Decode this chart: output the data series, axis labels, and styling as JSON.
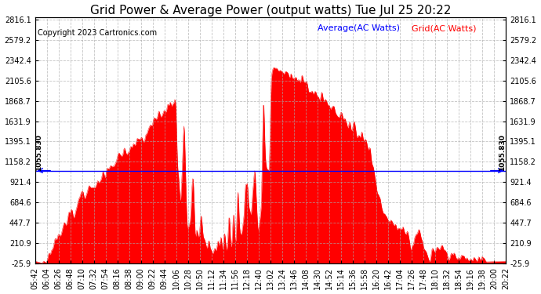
{
  "title": "Grid Power & Average Power (output watts) Tue Jul 25 20:22",
  "copyright": "Copyright 2023 Cartronics.com",
  "legend_average": "Average(AC Watts)",
  "legend_grid": "Grid(AC Watts)",
  "average_value": 1055.83,
  "average_label": "1055.830",
  "y_min": -25.9,
  "y_max": 2816.1,
  "yticks": [
    2816.1,
    2579.2,
    2342.4,
    2105.6,
    1868.7,
    1631.9,
    1395.1,
    1158.2,
    921.4,
    684.6,
    447.7,
    210.9,
    -25.9
  ],
  "fill_color": "#ff0000",
  "line_color": "#ff0000",
  "average_line_color": "#0000ff",
  "background_color": "#ffffff",
  "grid_color": "#aaaaaa",
  "title_fontsize": 11,
  "copyright_fontsize": 7,
  "legend_fontsize": 8,
  "tick_fontsize": 7,
  "xtick_labels": [
    "05:42",
    "06:04",
    "06:26",
    "06:48",
    "07:10",
    "07:32",
    "07:54",
    "08:16",
    "08:38",
    "09:00",
    "09:22",
    "09:44",
    "10:06",
    "10:28",
    "10:50",
    "11:12",
    "11:34",
    "11:56",
    "12:18",
    "12:40",
    "13:02",
    "13:24",
    "13:46",
    "14:08",
    "14:30",
    "14:52",
    "15:14",
    "15:36",
    "15:58",
    "16:20",
    "16:42",
    "17:04",
    "17:26",
    "17:48",
    "18:10",
    "18:32",
    "18:54",
    "19:16",
    "19:38",
    "20:00",
    "20:22"
  ]
}
